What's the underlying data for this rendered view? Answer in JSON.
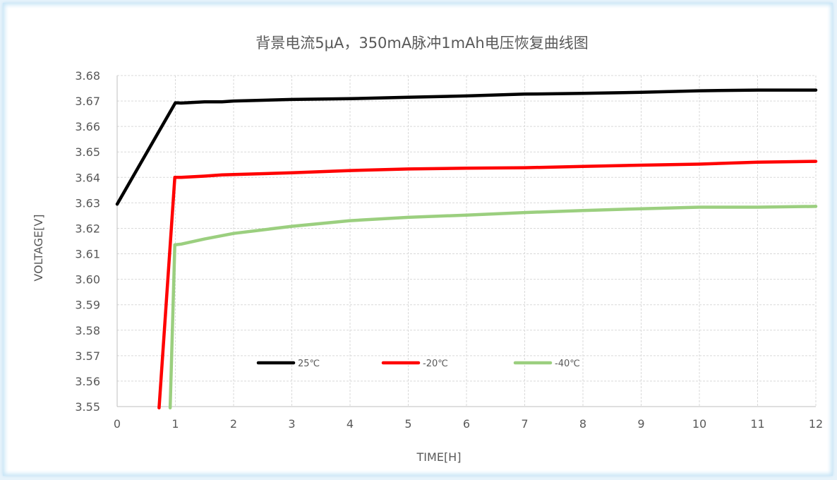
{
  "chart_data": {
    "type": "line",
    "title": "背景电流5μA，350mA脉冲1mAh电压恢复曲线图",
    "xlabel": "TIME[H]",
    "ylabel": "VOLTAGE[V]",
    "xlim": [
      0,
      12
    ],
    "ylim": [
      3.55,
      3.68
    ],
    "x_ticks": [
      "0",
      "1",
      "2",
      "3",
      "4",
      "5",
      "6",
      "7",
      "8",
      "9",
      "10",
      "11",
      "12"
    ],
    "y_ticks": [
      "3.55",
      "3.56",
      "3.57",
      "3.58",
      "3.59",
      "3.60",
      "3.61",
      "3.62",
      "3.63",
      "3.64",
      "3.65",
      "3.66",
      "3.67",
      "3.68"
    ],
    "grid": true,
    "legend_position": "inside-bottom",
    "series": [
      {
        "name": "25℃",
        "color": "#000000",
        "points": [
          [
            0,
            3.6295
          ],
          [
            1.0,
            3.6693
          ],
          [
            1.1,
            3.6692
          ],
          [
            1.5,
            3.6697
          ],
          [
            1.8,
            3.6697
          ],
          [
            2,
            3.67
          ],
          [
            3,
            3.6706
          ],
          [
            4,
            3.6709
          ],
          [
            5,
            3.6715
          ],
          [
            6,
            3.672
          ],
          [
            7,
            3.6727
          ],
          [
            8,
            3.673
          ],
          [
            9,
            3.6734
          ],
          [
            10,
            3.674
          ],
          [
            11,
            3.6743
          ],
          [
            12,
            3.6743
          ]
        ]
      },
      {
        "name": "-20℃",
        "color": "#ff0000",
        "points": [
          [
            0.72,
            3.5495
          ],
          [
            0.99,
            3.64
          ],
          [
            1.1,
            3.64
          ],
          [
            1.5,
            3.6405
          ],
          [
            1.8,
            3.641
          ],
          [
            2,
            3.6411
          ],
          [
            3,
            3.6418
          ],
          [
            4,
            3.6427
          ],
          [
            5,
            3.6433
          ],
          [
            6,
            3.6436
          ],
          [
            7,
            3.6438
          ],
          [
            8,
            3.6443
          ],
          [
            9,
            3.6448
          ],
          [
            10,
            3.6452
          ],
          [
            11,
            3.646
          ],
          [
            12,
            3.6463
          ]
        ]
      },
      {
        "name": "-40℃",
        "color": "#9bcf7f",
        "points": [
          [
            0.91,
            3.5495
          ],
          [
            0.99,
            3.6135
          ],
          [
            1.1,
            3.6138
          ],
          [
            1.5,
            3.6158
          ],
          [
            2,
            3.618
          ],
          [
            3,
            3.6208
          ],
          [
            4,
            3.623
          ],
          [
            5,
            3.6243
          ],
          [
            6,
            3.6252
          ],
          [
            7,
            3.6262
          ],
          [
            8,
            3.627
          ],
          [
            9,
            3.6277
          ],
          [
            10,
            3.6283
          ],
          [
            11,
            3.6283
          ],
          [
            12,
            3.6286
          ]
        ]
      }
    ]
  }
}
